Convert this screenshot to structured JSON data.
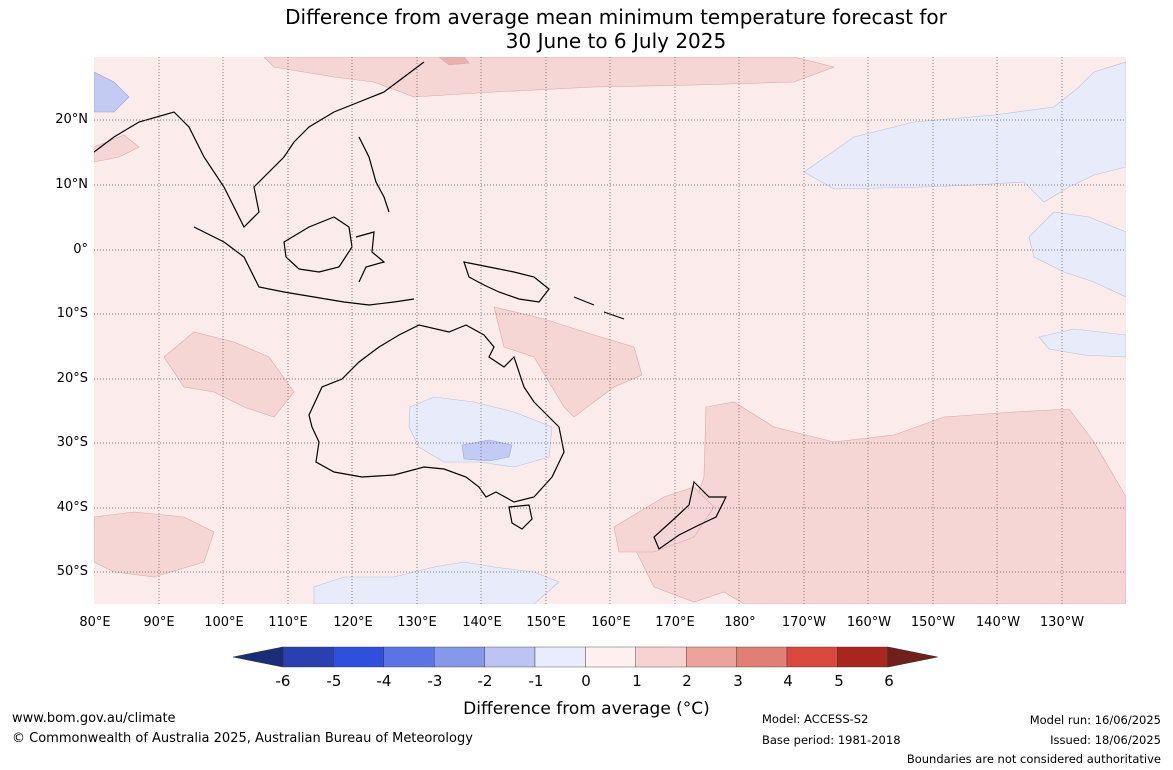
{
  "title": {
    "line1": "Difference from average mean minimum temperature forecast for",
    "line2": "30 June to 6 July 2025"
  },
  "map": {
    "lat_labels": [
      "20°N",
      "10°N",
      "0°",
      "10°S",
      "20°S",
      "30°S",
      "40°S",
      "50°S"
    ],
    "lon_labels": [
      "80°E",
      "90°E",
      "100°E",
      "110°E",
      "120°E",
      "130°E",
      "140°E",
      "150°E",
      "160°E",
      "170°E",
      "180°",
      "170°W",
      "160°W",
      "150°W",
      "140°W",
      "130°W"
    ],
    "colors": {
      "neutral_pos": "#fbebea",
      "pos_1_2": "#f5d6d4",
      "pos_2_3": "#eab0ab",
      "neg_0_1": "#e8ecfa",
      "neg_1_2": "#c3caf3",
      "coast": "#000000",
      "border": "#888888"
    }
  },
  "colorbar": {
    "ticks": [
      "-6",
      "-5",
      "-4",
      "-3",
      "-2",
      "-1",
      "0",
      "1",
      "2",
      "3",
      "4",
      "5",
      "6"
    ],
    "colors": [
      "#1a2d77",
      "#2a3fb0",
      "#2f4fdd",
      "#5a74e6",
      "#8797ea",
      "#bcc4f3",
      "#e9ecfc",
      "#fdf0ee",
      "#f6d3d1",
      "#eca39c",
      "#e27f75",
      "#d9473d",
      "#a9261f",
      "#70201a"
    ],
    "label": "Difference from average (°C)"
  },
  "footer": {
    "website": "www.bom.gov.au/climate",
    "copyright": "© Commonwealth of Australia 2025, Australian Bureau of Meteorology",
    "model": "Model: ACCESS-S2",
    "base_period": "Base period: 1981-2018",
    "model_run": "Model run: 16/06/2025",
    "issued": "Issued: 18/06/2025",
    "disclaimer": "Boundaries are not considered authoritative"
  }
}
